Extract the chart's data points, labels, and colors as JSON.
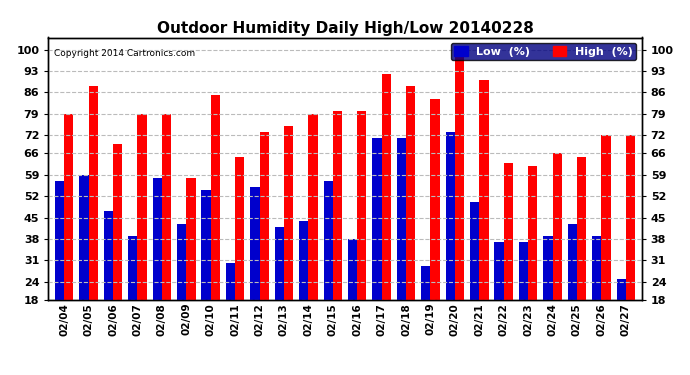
{
  "title": "Outdoor Humidity Daily High/Low 20140228",
  "copyright": "Copyright 2014 Cartronics.com",
  "dates": [
    "02/04",
    "02/05",
    "02/06",
    "02/07",
    "02/08",
    "02/09",
    "02/10",
    "02/11",
    "02/12",
    "02/13",
    "02/14",
    "02/15",
    "02/16",
    "02/17",
    "02/18",
    "02/19",
    "02/20",
    "02/21",
    "02/22",
    "02/23",
    "02/24",
    "02/25",
    "02/26",
    "02/27"
  ],
  "high": [
    79,
    88,
    69,
    79,
    79,
    58,
    85,
    65,
    73,
    75,
    79,
    80,
    80,
    92,
    88,
    84,
    100,
    90,
    63,
    62,
    66,
    65,
    72,
    72
  ],
  "low": [
    57,
    59,
    47,
    39,
    58,
    43,
    54,
    30,
    55,
    42,
    44,
    57,
    38,
    71,
    71,
    29,
    73,
    50,
    37,
    37,
    39,
    43,
    39,
    25
  ],
  "bar_width": 0.38,
  "ylim_min": 18,
  "ylim_max": 104,
  "yticks": [
    18,
    24,
    31,
    38,
    45,
    52,
    59,
    66,
    72,
    79,
    86,
    93,
    100
  ],
  "high_color": "#ff0000",
  "low_color": "#0000cc",
  "bg_color": "#ffffff",
  "grid_color": "#bbbbbb",
  "title_fontsize": 11,
  "legend_low_label": "Low  (%)",
  "legend_high_label": "High  (%)"
}
